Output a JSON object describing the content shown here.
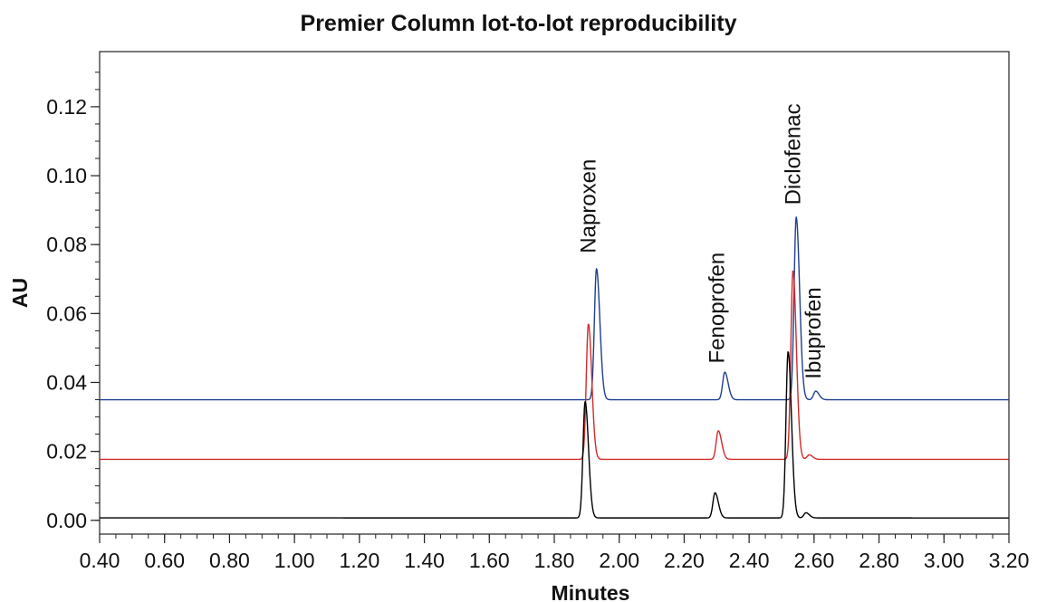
{
  "chart_data": {
    "type": "line",
    "title": "Premier Column lot-to-lot reproducibility",
    "xlabel": "Minutes",
    "ylabel": "AU",
    "xlim": [
      0.4,
      3.2
    ],
    "ylim": [
      -0.004,
      0.136
    ],
    "x_ticks": [
      "0.40",
      "0.60",
      "0.80",
      "1.00",
      "1.20",
      "1.40",
      "1.60",
      "1.80",
      "2.00",
      "2.20",
      "2.40",
      "2.60",
      "2.80",
      "3.00",
      "3.20"
    ],
    "y_ticks": [
      "0.00",
      "0.02",
      "0.04",
      "0.06",
      "0.08",
      "0.10",
      "0.12"
    ],
    "grid": false,
    "series": [
      {
        "color": "#1f3f8f",
        "baseline": 0.035,
        "peaks": [
          {
            "x": 1.93,
            "height": 0.073
          },
          {
            "x": 2.325,
            "height": 0.043
          },
          {
            "x": 2.545,
            "height": 0.088
          },
          {
            "x": 2.605,
            "height": 0.0375
          }
        ]
      },
      {
        "color": "#d42a2a",
        "baseline": 0.0177,
        "peaks": [
          {
            "x": 1.905,
            "height": 0.057
          },
          {
            "x": 2.305,
            "height": 0.026
          },
          {
            "x": 2.535,
            "height": 0.0725
          },
          {
            "x": 2.585,
            "height": 0.019
          }
        ]
      },
      {
        "color": "#000000",
        "baseline": 0.0007,
        "peaks": [
          {
            "x": 1.895,
            "height": 0.0345
          },
          {
            "x": 2.295,
            "height": 0.008
          },
          {
            "x": 2.52,
            "height": 0.049
          },
          {
            "x": 2.575,
            "height": 0.0022
          }
        ]
      }
    ],
    "annotations": [
      {
        "text": "Naproxen",
        "x": 1.905,
        "y": 0.0775
      },
      {
        "text": "Fenoprofen",
        "x": 2.3,
        "y": 0.0455
      },
      {
        "text": "Diclofenac",
        "x": 2.535,
        "y": 0.0915
      },
      {
        "text": "Ibuprofen",
        "x": 2.598,
        "y": 0.041
      }
    ]
  }
}
